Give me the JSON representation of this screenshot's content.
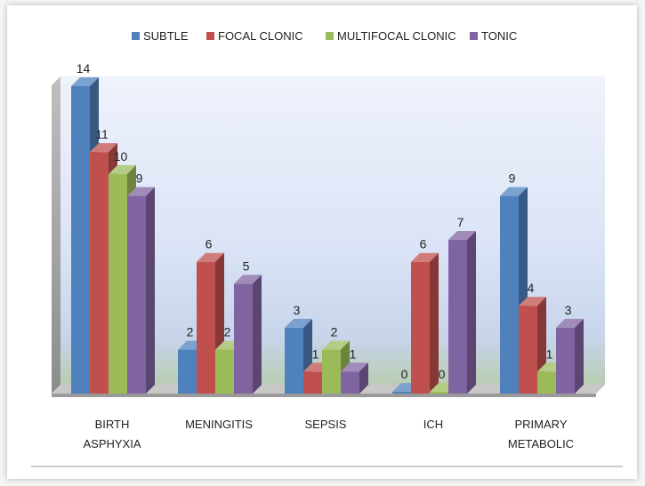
{
  "chart_data": {
    "type": "bar",
    "title": "",
    "xlabel": "",
    "ylabel": "",
    "ylim": [
      0,
      14
    ],
    "grid": false,
    "legend_position": "top",
    "categories": [
      [
        "BIRTH",
        "ASPHYXIA"
      ],
      [
        "MENINGITIS"
      ],
      [
        "SEPSIS"
      ],
      [
        "ICH"
      ],
      [
        "PRIMARY",
        "METABOLIC"
      ]
    ],
    "series": [
      {
        "name": "SUBTLE",
        "values": [
          14,
          2,
          3,
          0,
          9
        ],
        "color": "#4f81bd"
      },
      {
        "name": "FOCAL CLONIC",
        "values": [
          11,
          6,
          1,
          6,
          4
        ],
        "color": "#c0504d"
      },
      {
        "name": "MULTIFOCAL CLONIC",
        "values": [
          10,
          2,
          2,
          0,
          1
        ],
        "color": "#9bbb59"
      },
      {
        "name": "TONIC",
        "values": [
          9,
          5,
          1,
          7,
          3
        ],
        "color": "#8064a2"
      }
    ]
  }
}
